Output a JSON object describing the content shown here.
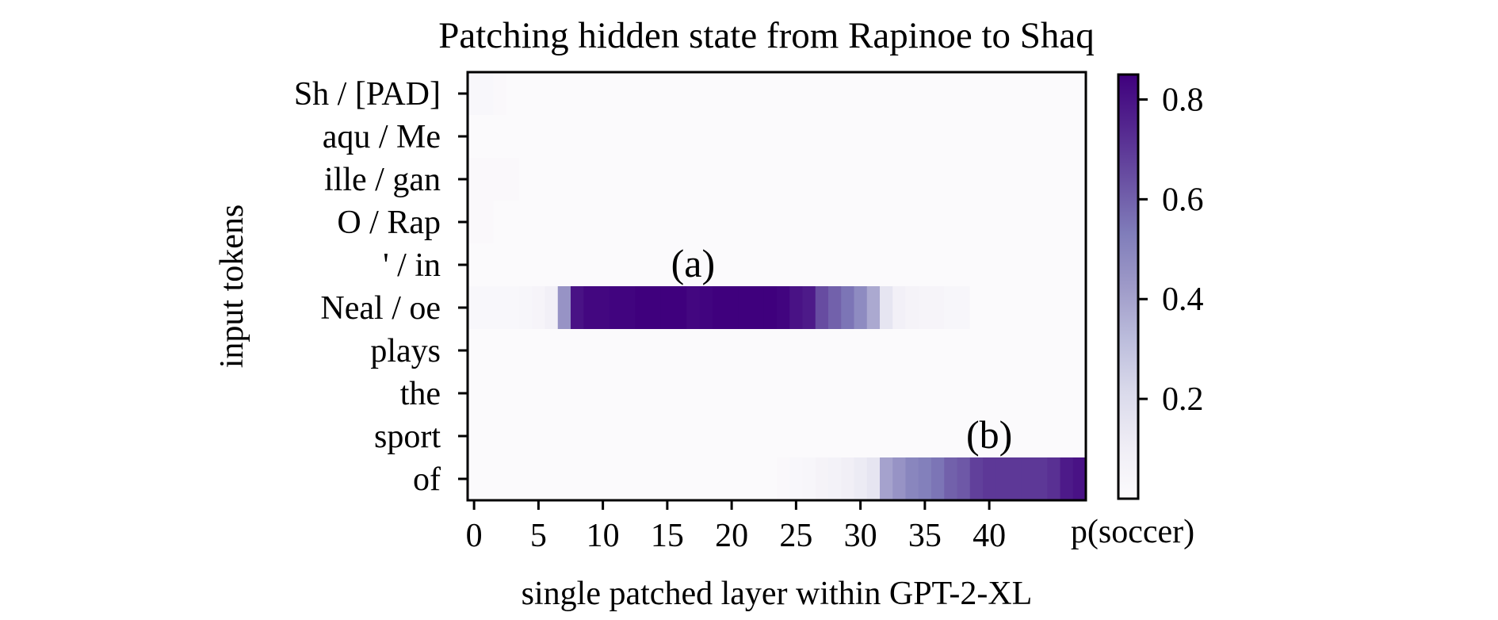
{
  "chart_data": {
    "type": "heatmap",
    "title": "Patching hidden state from Rapinoe to Shaq",
    "xlabel": "single patched layer within GPT-2-XL",
    "ylabel": "input tokens",
    "x_ticks": [
      "0",
      "5",
      "10",
      "15",
      "20",
      "25",
      "30",
      "35",
      "40"
    ],
    "y_labels": [
      "Sh / [PAD]",
      "aqu / Me",
      "ille / gan",
      "O /  Rap",
      "' / in",
      "Neal / oe",
      "plays",
      "the",
      "sport",
      "of"
    ],
    "n_layers": 48,
    "colorbar": {
      "label": "p(soccer)",
      "ticks": [
        "0.2",
        "0.4",
        "0.6",
        "0.8"
      ],
      "tick_values": [
        0.2,
        0.4,
        0.6,
        0.8
      ],
      "range": [
        0.0,
        0.85
      ],
      "colormap": "Purples",
      "color_low": "#fcfbfd",
      "color_high": "#3f007d"
    },
    "annotations": [
      {
        "text": "(a)",
        "row": "Neal / oe",
        "layer": 17
      },
      {
        "text": "(b)",
        "row": "of",
        "layer": 40
      }
    ],
    "rows": [
      {
        "token": "Sh / [PAD]",
        "values": [
          0.03,
          0.03,
          0.02,
          0.01,
          0.01,
          0.01,
          0.01,
          0.01,
          0.01,
          0.01,
          0.01,
          0.01,
          0.01,
          0.01,
          0.01,
          0.01,
          0.01,
          0.01,
          0.01,
          0.01,
          0.01,
          0.01,
          0.01,
          0.01,
          0.01,
          0.01,
          0.01,
          0.01,
          0.01,
          0.01,
          0.01,
          0.01,
          0.01,
          0.01,
          0.01,
          0.01,
          0.01,
          0.01,
          0.01,
          0.01,
          0.01,
          0.01,
          0.01,
          0.01,
          0.01,
          0.01,
          0.01,
          0.01
        ]
      },
      {
        "token": "aqu / Me",
        "values": [
          0.01,
          0.01,
          0.01,
          0.01,
          0.01,
          0.01,
          0.01,
          0.01,
          0.01,
          0.01,
          0.01,
          0.01,
          0.01,
          0.01,
          0.01,
          0.01,
          0.01,
          0.01,
          0.01,
          0.01,
          0.01,
          0.01,
          0.01,
          0.01,
          0.01,
          0.01,
          0.01,
          0.01,
          0.01,
          0.01,
          0.01,
          0.01,
          0.01,
          0.01,
          0.01,
          0.01,
          0.01,
          0.01,
          0.01,
          0.01,
          0.01,
          0.01,
          0.01,
          0.01,
          0.01,
          0.01,
          0.01,
          0.01
        ]
      },
      {
        "token": "ille / gan",
        "values": [
          0.02,
          0.02,
          0.02,
          0.02,
          0.01,
          0.01,
          0.01,
          0.01,
          0.01,
          0.01,
          0.01,
          0.01,
          0.01,
          0.01,
          0.01,
          0.01,
          0.01,
          0.01,
          0.01,
          0.01,
          0.01,
          0.01,
          0.01,
          0.01,
          0.01,
          0.01,
          0.01,
          0.01,
          0.01,
          0.01,
          0.01,
          0.01,
          0.01,
          0.01,
          0.01,
          0.01,
          0.01,
          0.01,
          0.01,
          0.01,
          0.01,
          0.01,
          0.01,
          0.01,
          0.01,
          0.01,
          0.01,
          0.01
        ]
      },
      {
        "token": "O /  Rap",
        "values": [
          0.02,
          0.02,
          0.01,
          0.01,
          0.01,
          0.01,
          0.01,
          0.01,
          0.01,
          0.01,
          0.01,
          0.01,
          0.01,
          0.01,
          0.01,
          0.01,
          0.01,
          0.01,
          0.01,
          0.01,
          0.01,
          0.01,
          0.01,
          0.01,
          0.01,
          0.01,
          0.01,
          0.01,
          0.01,
          0.01,
          0.01,
          0.01,
          0.01,
          0.01,
          0.01,
          0.01,
          0.01,
          0.01,
          0.01,
          0.01,
          0.01,
          0.01,
          0.01,
          0.01,
          0.01,
          0.01,
          0.01,
          0.01
        ]
      },
      {
        "token": "' / in",
        "values": [
          0.01,
          0.01,
          0.01,
          0.01,
          0.01,
          0.01,
          0.01,
          0.01,
          0.01,
          0.01,
          0.01,
          0.01,
          0.01,
          0.01,
          0.01,
          0.01,
          0.01,
          0.01,
          0.01,
          0.01,
          0.01,
          0.01,
          0.01,
          0.01,
          0.01,
          0.01,
          0.01,
          0.01,
          0.01,
          0.01,
          0.01,
          0.01,
          0.01,
          0.01,
          0.01,
          0.01,
          0.01,
          0.01,
          0.01,
          0.01,
          0.01,
          0.01,
          0.01,
          0.01,
          0.01,
          0.01,
          0.01,
          0.01
        ]
      },
      {
        "token": "Neal / oe",
        "values": [
          0.03,
          0.03,
          0.03,
          0.03,
          0.04,
          0.05,
          0.08,
          0.45,
          0.8,
          0.83,
          0.83,
          0.84,
          0.84,
          0.85,
          0.85,
          0.85,
          0.85,
          0.83,
          0.84,
          0.85,
          0.85,
          0.85,
          0.85,
          0.85,
          0.84,
          0.8,
          0.78,
          0.65,
          0.6,
          0.55,
          0.48,
          0.38,
          0.15,
          0.08,
          0.06,
          0.05,
          0.05,
          0.04,
          0.04,
          0.01,
          0.01,
          0.01,
          0.01,
          0.01,
          0.01,
          0.01,
          0.01,
          0.01
        ]
      },
      {
        "token": "plays",
        "values": [
          0.01,
          0.01,
          0.01,
          0.01,
          0.01,
          0.01,
          0.01,
          0.01,
          0.01,
          0.01,
          0.01,
          0.01,
          0.01,
          0.01,
          0.01,
          0.01,
          0.01,
          0.01,
          0.01,
          0.01,
          0.01,
          0.01,
          0.01,
          0.01,
          0.01,
          0.01,
          0.01,
          0.01,
          0.01,
          0.01,
          0.01,
          0.01,
          0.01,
          0.01,
          0.01,
          0.01,
          0.01,
          0.01,
          0.01,
          0.01,
          0.01,
          0.01,
          0.01,
          0.01,
          0.01,
          0.01,
          0.01,
          0.01
        ]
      },
      {
        "token": "the",
        "values": [
          0.01,
          0.01,
          0.01,
          0.01,
          0.01,
          0.01,
          0.01,
          0.01,
          0.01,
          0.01,
          0.01,
          0.01,
          0.01,
          0.01,
          0.01,
          0.01,
          0.01,
          0.01,
          0.01,
          0.01,
          0.01,
          0.01,
          0.01,
          0.01,
          0.01,
          0.01,
          0.01,
          0.01,
          0.01,
          0.01,
          0.01,
          0.01,
          0.01,
          0.01,
          0.01,
          0.01,
          0.01,
          0.01,
          0.01,
          0.01,
          0.01,
          0.01,
          0.01,
          0.01,
          0.01,
          0.01,
          0.01,
          0.01
        ]
      },
      {
        "token": "sport",
        "values": [
          0.01,
          0.01,
          0.01,
          0.01,
          0.01,
          0.01,
          0.01,
          0.01,
          0.01,
          0.01,
          0.01,
          0.01,
          0.01,
          0.01,
          0.01,
          0.01,
          0.01,
          0.01,
          0.01,
          0.01,
          0.01,
          0.01,
          0.01,
          0.01,
          0.01,
          0.01,
          0.01,
          0.01,
          0.01,
          0.01,
          0.01,
          0.01,
          0.01,
          0.01,
          0.01,
          0.01,
          0.01,
          0.01,
          0.01,
          0.01,
          0.01,
          0.01,
          0.01,
          0.01,
          0.01,
          0.01,
          0.01,
          0.01
        ]
      },
      {
        "token": "of",
        "values": [
          0.01,
          0.01,
          0.01,
          0.01,
          0.01,
          0.01,
          0.01,
          0.01,
          0.01,
          0.01,
          0.01,
          0.01,
          0.01,
          0.01,
          0.01,
          0.01,
          0.01,
          0.01,
          0.01,
          0.01,
          0.01,
          0.01,
          0.01,
          0.01,
          0.02,
          0.03,
          0.04,
          0.06,
          0.07,
          0.09,
          0.12,
          0.15,
          0.4,
          0.45,
          0.5,
          0.52,
          0.55,
          0.6,
          0.62,
          0.68,
          0.7,
          0.7,
          0.7,
          0.7,
          0.7,
          0.72,
          0.78,
          0.8
        ]
      }
    ]
  }
}
